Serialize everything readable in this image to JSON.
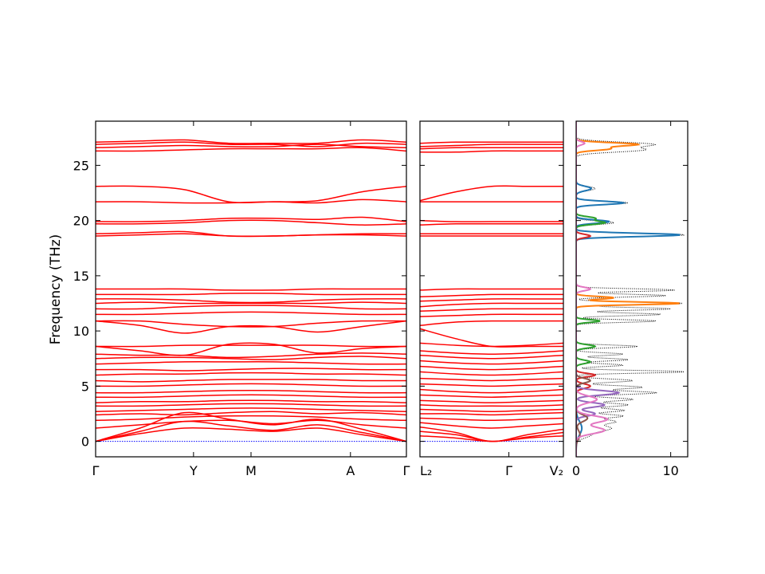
{
  "chart_data": [
    {
      "type": "line",
      "panel": "band-structure-1",
      "ylabel": "Frequency (THz)",
      "ylim": [
        -1.4,
        29.0
      ],
      "yticks": [
        0,
        5,
        10,
        15,
        20,
        25
      ],
      "xticks": [
        {
          "label": "Γ",
          "pos": 0.0
        },
        {
          "label": "Y",
          "pos": 0.315
        },
        {
          "label": "M",
          "pos": 0.5
        },
        {
          "label": "A",
          "pos": 0.82
        },
        {
          "label": "Γ",
          "pos": 1.0
        }
      ],
      "band_color": "#ff0000",
      "zero_line_color": "#0000ff",
      "bands": [
        [
          0,
          1.2,
          2.6,
          2.0,
          1.5,
          2.0,
          1.1,
          0
        ],
        [
          0,
          0.9,
          1.8,
          1.4,
          1.0,
          1.5,
          0.8,
          0
        ],
        [
          0,
          0.7,
          1.2,
          1.1,
          0.9,
          1.2,
          0.6,
          0
        ],
        [
          1.2,
          1.5,
          1.8,
          1.9,
          1.6,
          1.9,
          1.5,
          1.2
        ],
        [
          1.9,
          2.0,
          2.2,
          2.3,
          2.3,
          2.2,
          2.0,
          1.9
        ],
        [
          2.4,
          2.5,
          2.4,
          2.6,
          2.7,
          2.5,
          2.6,
          2.4
        ],
        [
          2.7,
          2.8,
          2.9,
          3.0,
          3.0,
          2.9,
          2.8,
          2.7
        ],
        [
          3.2,
          3.2,
          3.3,
          3.4,
          3.4,
          3.3,
          3.2,
          3.2
        ],
        [
          3.5,
          3.6,
          3.6,
          3.7,
          3.7,
          3.6,
          3.6,
          3.5
        ],
        [
          4.0,
          4.0,
          4.1,
          4.2,
          4.2,
          4.1,
          4.0,
          4.0
        ],
        [
          4.4,
          4.4,
          4.5,
          4.6,
          4.6,
          4.5,
          4.4,
          4.4
        ],
        [
          5.0,
          5.0,
          5.1,
          5.2,
          5.2,
          5.1,
          5.0,
          5.0
        ],
        [
          5.5,
          5.4,
          5.5,
          5.6,
          5.6,
          5.6,
          5.5,
          5.5
        ],
        [
          6.0,
          6.1,
          6.1,
          6.2,
          6.2,
          6.1,
          6.1,
          6.0
        ],
        [
          6.5,
          6.5,
          6.4,
          6.5,
          6.6,
          6.6,
          6.5,
          6.5
        ],
        [
          7.0,
          7.1,
          7.2,
          7.2,
          7.2,
          7.1,
          7.0,
          7.0
        ],
        [
          7.5,
          7.6,
          7.6,
          7.5,
          7.4,
          7.6,
          7.7,
          7.5
        ],
        [
          7.9,
          7.8,
          7.8,
          7.6,
          7.7,
          7.9,
          8.0,
          7.9
        ],
        [
          8.6,
          8.6,
          8.7,
          8.7,
          8.7,
          8.7,
          8.6,
          8.6
        ],
        [
          8.6,
          8.2,
          7.8,
          8.8,
          8.8,
          8.0,
          8.4,
          8.6
        ],
        [
          10.9,
          10.9,
          10.6,
          10.4,
          10.4,
          10.7,
          10.9,
          10.9
        ],
        [
          10.9,
          10.5,
          9.8,
          10.4,
          10.4,
          9.9,
          10.4,
          10.9
        ],
        [
          11.5,
          11.5,
          11.6,
          11.7,
          11.7,
          11.6,
          11.5,
          11.5
        ],
        [
          12.0,
          12.0,
          12.2,
          12.3,
          12.3,
          12.2,
          12.0,
          12.0
        ],
        [
          12.5,
          12.6,
          12.5,
          12.5,
          12.5,
          12.5,
          12.6,
          12.5
        ],
        [
          12.9,
          12.9,
          12.8,
          12.6,
          12.6,
          12.8,
          12.9,
          12.9
        ],
        [
          13.3,
          13.3,
          13.3,
          13.4,
          13.4,
          13.3,
          13.3,
          13.3
        ],
        [
          13.8,
          13.8,
          13.8,
          13.7,
          13.7,
          13.8,
          13.8,
          13.8
        ],
        [
          18.6,
          18.7,
          18.8,
          18.6,
          18.6,
          18.7,
          18.7,
          18.6
        ],
        [
          18.8,
          18.9,
          19.0,
          18.6,
          18.6,
          18.7,
          18.8,
          18.8
        ],
        [
          19.7,
          19.7,
          19.8,
          20.0,
          20.0,
          19.8,
          19.6,
          19.7
        ],
        [
          19.9,
          19.9,
          20.0,
          20.2,
          20.2,
          20.1,
          20.3,
          19.9
        ],
        [
          21.7,
          21.7,
          21.6,
          21.6,
          21.7,
          21.6,
          21.9,
          21.7
        ],
        [
          23.1,
          23.1,
          22.8,
          21.7,
          21.7,
          21.8,
          22.6,
          23.1
        ],
        [
          26.3,
          26.3,
          26.4,
          26.5,
          26.5,
          26.5,
          26.6,
          26.3
        ],
        [
          26.6,
          26.7,
          26.8,
          26.7,
          26.7,
          26.9,
          26.7,
          26.6
        ],
        [
          26.9,
          27.0,
          27.1,
          26.9,
          26.9,
          26.7,
          27.0,
          26.9
        ],
        [
          27.1,
          27.2,
          27.3,
          27.0,
          27.0,
          27.0,
          27.3,
          27.1
        ]
      ]
    },
    {
      "type": "line",
      "panel": "band-structure-2",
      "ylim": [
        -1.4,
        29.0
      ],
      "xticks": [
        {
          "label": "L₂",
          "pos": 0.0
        },
        {
          "label": "Γ",
          "pos": 0.62
        },
        {
          "label": "V₂",
          "pos": 1.0
        }
      ],
      "band_color": "#ff0000",
      "zero_line_color": "#0000ff",
      "bands": [
        [
          0.5,
          0.3,
          0,
          0.3,
          0.5
        ],
        [
          0.9,
          0.6,
          0,
          0.4,
          0.8
        ],
        [
          1.3,
          0.8,
          0,
          0.6,
          1.1
        ],
        [
          1.7,
          1.4,
          1.2,
          1.4,
          1.6
        ],
        [
          2.1,
          2.0,
          1.9,
          2.0,
          2.1
        ],
        [
          2.5,
          2.5,
          2.4,
          2.5,
          2.6
        ],
        [
          2.9,
          2.8,
          2.7,
          2.8,
          2.9
        ],
        [
          3.3,
          3.2,
          3.2,
          3.2,
          3.3
        ],
        [
          3.7,
          3.6,
          3.5,
          3.6,
          3.7
        ],
        [
          4.2,
          4.1,
          4.0,
          4.1,
          4.2
        ],
        [
          4.7,
          4.5,
          4.4,
          4.5,
          4.7
        ],
        [
          5.2,
          5.1,
          5.0,
          5.1,
          5.2
        ],
        [
          5.7,
          5.6,
          5.5,
          5.6,
          5.7
        ],
        [
          6.3,
          6.1,
          6.0,
          6.1,
          6.3
        ],
        [
          6.8,
          6.6,
          6.5,
          6.6,
          6.8
        ],
        [
          7.3,
          7.1,
          7.0,
          7.1,
          7.3
        ],
        [
          7.8,
          7.6,
          7.5,
          7.6,
          7.8
        ],
        [
          8.2,
          8.0,
          7.9,
          8.0,
          8.2
        ],
        [
          8.9,
          8.7,
          8.6,
          8.7,
          8.9
        ],
        [
          10.2,
          9.3,
          8.6,
          8.6,
          8.6
        ],
        [
          10.5,
          10.8,
          10.9,
          10.9,
          10.9
        ],
        [
          11.3,
          11.4,
          11.5,
          11.5,
          11.5
        ],
        [
          11.8,
          11.9,
          12.0,
          12.0,
          12.0
        ],
        [
          12.2,
          12.4,
          12.5,
          12.5,
          12.5
        ],
        [
          12.7,
          12.8,
          12.9,
          12.9,
          12.9
        ],
        [
          13.1,
          13.2,
          13.3,
          13.3,
          13.3
        ],
        [
          13.7,
          13.8,
          13.8,
          13.8,
          13.8
        ],
        [
          18.6,
          18.6,
          18.6,
          18.6,
          18.6
        ],
        [
          18.8,
          18.8,
          18.8,
          18.8,
          18.8
        ],
        [
          19.6,
          19.7,
          19.7,
          19.7,
          19.7
        ],
        [
          20.0,
          19.9,
          19.9,
          19.9,
          19.9
        ],
        [
          21.7,
          21.7,
          21.7,
          21.7,
          21.7
        ],
        [
          21.8,
          22.6,
          23.1,
          23.1,
          23.1
        ],
        [
          26.2,
          26.2,
          26.3,
          26.3,
          26.3
        ],
        [
          26.5,
          26.6,
          26.6,
          26.6,
          26.6
        ],
        [
          26.7,
          26.8,
          26.9,
          26.9,
          26.9
        ],
        [
          27.0,
          27.1,
          27.1,
          27.1,
          27.1
        ]
      ]
    },
    {
      "type": "area",
      "panel": "density-of-states",
      "ylim": [
        -1.4,
        29.0
      ],
      "xlim": [
        0,
        11.8
      ],
      "xticks": [
        {
          "label": "0",
          "value": 0
        },
        {
          "label": "10",
          "value": 10
        }
      ],
      "total_color": "#000000",
      "series": [
        {
          "color": "#1f77b4",
          "peaks": [
            [
              18.7,
              11.0,
              0.15
            ],
            [
              21.6,
              5.0,
              0.15
            ],
            [
              22.9,
              1.6,
              0.2
            ],
            [
              19.9,
              3.5,
              0.15
            ],
            [
              1.2,
              0.6,
              0.6
            ]
          ]
        },
        {
          "color": "#ff7f0e",
          "peaks": [
            [
              26.9,
              6.5,
              0.15
            ],
            [
              26.5,
              3.5,
              0.15
            ],
            [
              12.5,
              11.0,
              0.12
            ],
            [
              13.0,
              4.0,
              0.12
            ]
          ]
        },
        {
          "color": "#2ca02c",
          "peaks": [
            [
              19.8,
              3.0,
              0.15
            ],
            [
              20.2,
              2.0,
              0.15
            ],
            [
              10.9,
              2.5,
              0.12
            ],
            [
              8.6,
              2.0,
              0.15
            ],
            [
              7.2,
              1.5,
              0.15
            ]
          ]
        },
        {
          "color": "#d62728",
          "peaks": [
            [
              18.6,
              1.5,
              0.15
            ],
            [
              6.0,
              2.0,
              0.15
            ],
            [
              5.0,
              1.5,
              0.2
            ]
          ]
        },
        {
          "color": "#9467bd",
          "peaks": [
            [
              4.4,
              4.5,
              0.2
            ],
            [
              3.3,
              3.0,
              0.2
            ],
            [
              2.5,
              2.0,
              0.2
            ]
          ]
        },
        {
          "color": "#8c564b",
          "peaks": [
            [
              5.5,
              1.5,
              0.2
            ],
            [
              2.1,
              1.2,
              0.3
            ],
            [
              0.6,
              0.4,
              0.4
            ]
          ]
        },
        {
          "color": "#e377c2",
          "peaks": [
            [
              27.0,
              0.9,
              0.15
            ],
            [
              1.0,
              3.0,
              0.3
            ],
            [
              2.0,
              3.3,
              0.3
            ],
            [
              3.8,
              2.2,
              0.3
            ],
            [
              13.8,
              1.5,
              0.15
            ]
          ]
        }
      ],
      "total_peaks": [
        [
          26.9,
          8.0,
          0.2
        ],
        [
          26.4,
          7.0,
          0.2
        ],
        [
          21.6,
          5.5,
          0.15
        ],
        [
          22.9,
          2.0,
          0.2
        ],
        [
          19.8,
          4.0,
          0.15
        ],
        [
          18.7,
          11.5,
          0.15
        ],
        [
          13.7,
          10.5,
          0.12
        ],
        [
          13.2,
          9.5,
          0.12
        ],
        [
          12.5,
          11.3,
          0.12
        ],
        [
          12.0,
          10.0,
          0.12
        ],
        [
          11.5,
          9.0,
          0.12
        ],
        [
          10.9,
          8.5,
          0.12
        ],
        [
          8.6,
          6.5,
          0.12
        ],
        [
          7.9,
          5.0,
          0.12
        ],
        [
          7.4,
          5.5,
          0.12
        ],
        [
          6.9,
          5.0,
          0.12
        ],
        [
          6.3,
          11.5,
          0.12
        ],
        [
          5.5,
          6.0,
          0.15
        ],
        [
          4.9,
          7.0,
          0.15
        ],
        [
          4.4,
          8.5,
          0.15
        ],
        [
          3.8,
          6.0,
          0.15
        ],
        [
          3.3,
          5.5,
          0.15
        ],
        [
          2.8,
          5.0,
          0.15
        ],
        [
          2.3,
          4.8,
          0.15
        ],
        [
          1.8,
          4.0,
          0.2
        ],
        [
          1.2,
          3.5,
          0.25
        ],
        [
          0.6,
          1.5,
          0.3
        ]
      ]
    }
  ]
}
